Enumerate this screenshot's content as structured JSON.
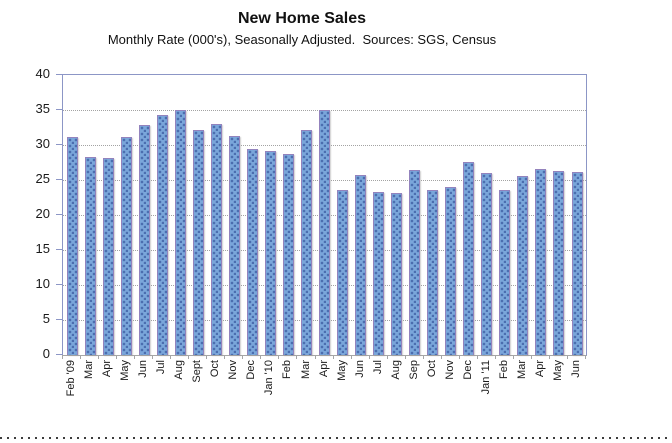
{
  "chart_data": {
    "type": "bar",
    "title": "New Home Sales",
    "subtitle": "Monthly Rate (000's), Seasonally Adjusted.  Sources: SGS, Census",
    "categories": [
      "Feb '09",
      "Mar",
      "Apr",
      "May",
      "Jun",
      "Jul",
      "Aug",
      "Sept",
      "Oct",
      "Nov",
      "Dec",
      "Jan '10",
      "Feb",
      "Mar",
      "Apr",
      "May",
      "Jun",
      "Jul",
      "Aug",
      "Sep",
      "Oct",
      "Nov",
      "Dec",
      "Jan '11",
      "Feb",
      "Mar",
      "Apr",
      "May",
      "Jun"
    ],
    "values": [
      31.1,
      28.3,
      28.1,
      31.2,
      32.8,
      34.3,
      35.0,
      32.2,
      33.0,
      31.3,
      29.4,
      29.1,
      28.7,
      32.1,
      35.0,
      23.5,
      25.7,
      23.3,
      23.2,
      26.4,
      23.6,
      24.0,
      27.6,
      26.0,
      23.5,
      25.5,
      26.5,
      26.3,
      26.1
    ],
    "xlabel": "",
    "ylabel": "",
    "ylim": [
      0,
      40
    ],
    "yticks": [
      0,
      5,
      10,
      15,
      20,
      25,
      30,
      35,
      40
    ],
    "grid": "horizontal-dotted",
    "legend": "none",
    "x_label_rotation": -90,
    "bar_style": "dotted-pattern"
  },
  "colors": {
    "bar_fill": "#7aa6da",
    "bar_dot": "#4a6dae",
    "bar_border": "#9383bd",
    "plot_border": "#8c96c6",
    "bottom_axis": "#a6a6a6",
    "gridline": "#a3a3a3",
    "text": "#111111"
  }
}
